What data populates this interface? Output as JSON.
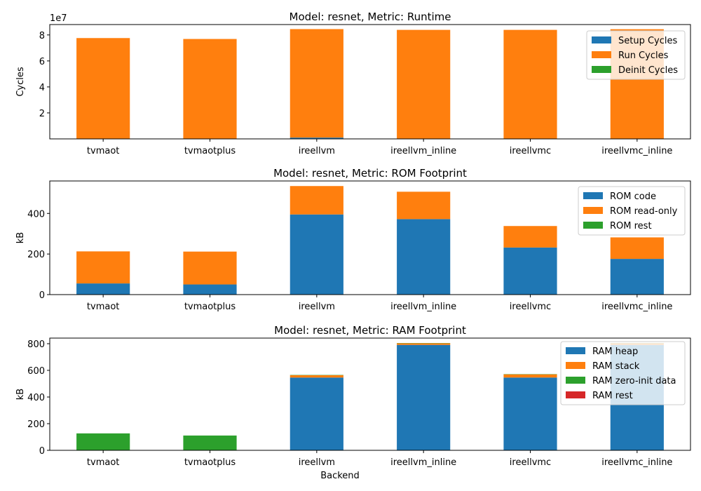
{
  "chart_data": [
    {
      "type": "bar",
      "stacked": true,
      "title": "Model: resnet, Metric: Runtime",
      "ylabel": "Cycles",
      "xlabel": "",
      "y_multiplier_label": "1e7",
      "ylim": [
        0,
        8.8
      ],
      "yticks": [
        2,
        4,
        6,
        8
      ],
      "categories": [
        "tvmaot",
        "tvmaotplus",
        "ireellvm",
        "ireellvm_inline",
        "ireellvmc",
        "ireellvmc_inline"
      ],
      "legend_position": "top-right",
      "series": [
        {
          "name": "Setup Cycles",
          "color": "#1f77b4",
          "values": [
            0.01,
            0.01,
            0.1,
            0.01,
            0.01,
            0.01
          ]
        },
        {
          "name": "Run Cycles",
          "color": "#ff7f0e",
          "values": [
            7.75,
            7.68,
            8.35,
            8.38,
            8.38,
            8.43
          ]
        },
        {
          "name": "Deinit Cycles",
          "color": "#2ca02c",
          "values": [
            0,
            0,
            0,
            0,
            0,
            0
          ]
        }
      ]
    },
    {
      "type": "bar",
      "stacked": true,
      "title": "Model: resnet, Metric: ROM Footprint",
      "ylabel": "kB",
      "xlabel": "",
      "ylim": [
        0,
        560
      ],
      "yticks": [
        0,
        200,
        400
      ],
      "categories": [
        "tvmaot",
        "tvmaotplus",
        "ireellvm",
        "ireellvm_inline",
        "ireellvmc",
        "ireellvmc_inline"
      ],
      "legend_position": "top-right",
      "series": [
        {
          "name": "ROM code",
          "color": "#1f77b4",
          "values": [
            55,
            50,
            395,
            372,
            232,
            176
          ]
        },
        {
          "name": "ROM read-only",
          "color": "#ff7f0e",
          "values": [
            158,
            162,
            140,
            135,
            106,
            106
          ]
        },
        {
          "name": "ROM rest",
          "color": "#2ca02c",
          "values": [
            0,
            0,
            0,
            0,
            0,
            0
          ]
        }
      ]
    },
    {
      "type": "bar",
      "stacked": true,
      "title": "Model: resnet, Metric: RAM Footprint",
      "ylabel": "kB",
      "xlabel": "Backend",
      "ylim": [
        0,
        842
      ],
      "yticks": [
        0,
        200,
        400,
        600,
        800
      ],
      "categories": [
        "tvmaot",
        "tvmaotplus",
        "ireellvm",
        "ireellvm_inline",
        "ireellvmc",
        "ireellvmc_inline"
      ],
      "legend_position": "top-right",
      "series": [
        {
          "name": "RAM heap",
          "color": "#1f77b4",
          "values": [
            0,
            0,
            546,
            791,
            546,
            791
          ]
        },
        {
          "name": "RAM stack",
          "color": "#ff7f0e",
          "values": [
            1,
            1,
            18,
            12,
            24,
            12
          ]
        },
        {
          "name": "RAM zero-init data",
          "color": "#2ca02c",
          "values": [
            126,
            110,
            2,
            2,
            2,
            2
          ]
        },
        {
          "name": "RAM rest",
          "color": "#d62728",
          "values": [
            0,
            0,
            0,
            0,
            0,
            0
          ]
        }
      ]
    }
  ]
}
